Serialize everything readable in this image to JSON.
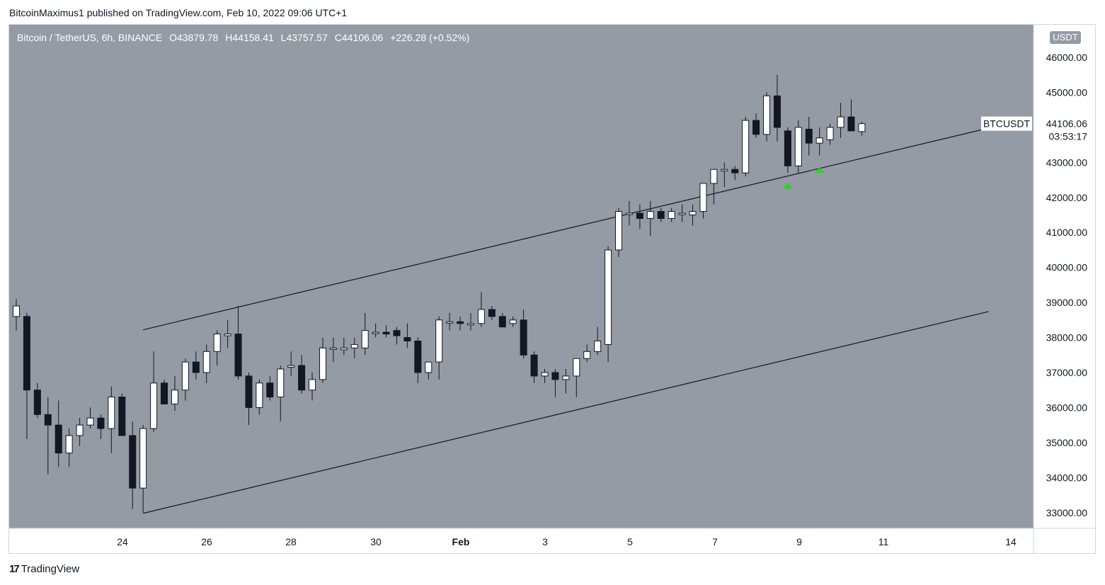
{
  "header": {
    "publisher_text": "BitcoinMaximus1 published on TradingView.com, Feb 10, 2022 09:06 UTC+1"
  },
  "legend": {
    "symbol_text": "Bitcoin / TetherUS, 6h, BINANCE",
    "open_label": "O",
    "open_value": "43879.78",
    "high_label": "H",
    "high_value": "44158.41",
    "low_label": "L",
    "low_value": "43757.57",
    "close_label": "C",
    "close_value": "44106.06",
    "change_text": "+226.28 (+0.52%)"
  },
  "currency_badge": "USDT",
  "price_tag": {
    "symbol": "BTCUSDT",
    "price": "44106.06",
    "countdown": "03:53:17"
  },
  "footer": {
    "brand": "TradingView",
    "logo_mark": "17"
  },
  "colors": {
    "background": "#949ba5",
    "bull_candle": "#ffffff",
    "bear_candle": "#131722",
    "wick": "#131722",
    "trendline": "#131722",
    "marker": "#2ed12e",
    "axis_text": "#131722"
  },
  "chart_data": {
    "type": "candlestick",
    "symbol": "BTCUSDT",
    "interval": "6h",
    "x_axis_ticks": [
      "24",
      "26",
      "28",
      "30",
      "Feb",
      "3",
      "5",
      "7",
      "9",
      "11",
      "14"
    ],
    "y_axis_ticks": [
      33000,
      34000,
      35000,
      36000,
      37000,
      38000,
      39000,
      40000,
      41000,
      42000,
      43000,
      44000,
      45000,
      46000
    ],
    "y_axis_tick_labels": [
      "33000.00",
      "34000.00",
      "35000.00",
      "36000.00",
      "37000.00",
      "38000.00",
      "39000.00",
      "40000.00",
      "41000.00",
      "42000.00",
      "43000.00",
      "44000.00",
      "45000.00",
      "46000.00"
    ],
    "ylim": [
      32550,
      46930
    ],
    "grid": false,
    "candles": [
      {
        "o": 38600,
        "h": 39100,
        "l": 38200,
        "c": 38900
      },
      {
        "o": 38600,
        "h": 38700,
        "l": 35100,
        "c": 36500
      },
      {
        "o": 36500,
        "h": 36700,
        "l": 35700,
        "c": 35800
      },
      {
        "o": 35800,
        "h": 36300,
        "l": 34100,
        "c": 35500
      },
      {
        "o": 35500,
        "h": 36200,
        "l": 34300,
        "c": 34700
      },
      {
        "o": 34700,
        "h": 35400,
        "l": 34300,
        "c": 35200
      },
      {
        "o": 35200,
        "h": 35700,
        "l": 34900,
        "c": 35500
      },
      {
        "o": 35500,
        "h": 36000,
        "l": 35400,
        "c": 35700
      },
      {
        "o": 35700,
        "h": 35800,
        "l": 35100,
        "c": 35400
      },
      {
        "o": 35400,
        "h": 36600,
        "l": 34700,
        "c": 36300
      },
      {
        "o": 36300,
        "h": 36400,
        "l": 35200,
        "c": 35200
      },
      {
        "o": 35200,
        "h": 35600,
        "l": 33100,
        "c": 33700
      },
      {
        "o": 33700,
        "h": 35500,
        "l": 33000,
        "c": 35400
      },
      {
        "o": 35400,
        "h": 37600,
        "l": 35300,
        "c": 36700
      },
      {
        "o": 36700,
        "h": 36800,
        "l": 36100,
        "c": 36100
      },
      {
        "o": 36100,
        "h": 36900,
        "l": 35900,
        "c": 36500
      },
      {
        "o": 36500,
        "h": 37400,
        "l": 36200,
        "c": 37300
      },
      {
        "o": 37300,
        "h": 37600,
        "l": 36800,
        "c": 37000
      },
      {
        "o": 37000,
        "h": 37800,
        "l": 36700,
        "c": 37600
      },
      {
        "o": 37600,
        "h": 38200,
        "l": 37200,
        "c": 38100
      },
      {
        "o": 38050,
        "h": 38500,
        "l": 37700,
        "c": 38100
      },
      {
        "o": 38100,
        "h": 38900,
        "l": 36800,
        "c": 36900
      },
      {
        "o": 36900,
        "h": 37000,
        "l": 35500,
        "c": 36000
      },
      {
        "o": 36000,
        "h": 36800,
        "l": 35800,
        "c": 36700
      },
      {
        "o": 36700,
        "h": 36900,
        "l": 36200,
        "c": 36300
      },
      {
        "o": 36300,
        "h": 37200,
        "l": 35600,
        "c": 37100
      },
      {
        "o": 37150,
        "h": 37600,
        "l": 36900,
        "c": 37200
      },
      {
        "o": 37200,
        "h": 37500,
        "l": 36400,
        "c": 36500
      },
      {
        "o": 36500,
        "h": 37000,
        "l": 36200,
        "c": 36800
      },
      {
        "o": 36800,
        "h": 38000,
        "l": 36700,
        "c": 37700
      },
      {
        "o": 37700,
        "h": 38000,
        "l": 37300,
        "c": 37700
      },
      {
        "o": 37650,
        "h": 38000,
        "l": 37500,
        "c": 37700
      },
      {
        "o": 37700,
        "h": 38000,
        "l": 37400,
        "c": 37800
      },
      {
        "o": 37700,
        "h": 38700,
        "l": 37500,
        "c": 38200
      },
      {
        "o": 38150,
        "h": 38400,
        "l": 38000,
        "c": 38150
      },
      {
        "o": 38150,
        "h": 38350,
        "l": 38000,
        "c": 38100
      },
      {
        "o": 38200,
        "h": 38300,
        "l": 37800,
        "c": 38050
      },
      {
        "o": 38000,
        "h": 38400,
        "l": 37700,
        "c": 37900
      },
      {
        "o": 37900,
        "h": 38000,
        "l": 36700,
        "c": 37000
      },
      {
        "o": 37000,
        "h": 37300,
        "l": 36800,
        "c": 37300
      },
      {
        "o": 37300,
        "h": 38600,
        "l": 36800,
        "c": 38500
      },
      {
        "o": 38450,
        "h": 38700,
        "l": 38200,
        "c": 38450
      },
      {
        "o": 38450,
        "h": 38600,
        "l": 38200,
        "c": 38400
      },
      {
        "o": 38400,
        "h": 38700,
        "l": 38200,
        "c": 38400
      },
      {
        "o": 38400,
        "h": 39300,
        "l": 38300,
        "c": 38800
      },
      {
        "o": 38800,
        "h": 38900,
        "l": 38500,
        "c": 38600
      },
      {
        "o": 38600,
        "h": 38700,
        "l": 38300,
        "c": 38300
      },
      {
        "o": 38400,
        "h": 38600,
        "l": 38300,
        "c": 38500
      },
      {
        "o": 38500,
        "h": 38800,
        "l": 37400,
        "c": 37500
      },
      {
        "o": 37500,
        "h": 37600,
        "l": 36700,
        "c": 36900
      },
      {
        "o": 36900,
        "h": 37100,
        "l": 36700,
        "c": 37000
      },
      {
        "o": 37000,
        "h": 37100,
        "l": 36300,
        "c": 36800
      },
      {
        "o": 36800,
        "h": 37100,
        "l": 36400,
        "c": 36900
      },
      {
        "o": 36900,
        "h": 37400,
        "l": 36300,
        "c": 37400
      },
      {
        "o": 37400,
        "h": 37800,
        "l": 37300,
        "c": 37600
      },
      {
        "o": 37600,
        "h": 38300,
        "l": 37500,
        "c": 37900
      },
      {
        "o": 37800,
        "h": 40600,
        "l": 37300,
        "c": 40500
      },
      {
        "o": 40500,
        "h": 41700,
        "l": 40300,
        "c": 41600
      },
      {
        "o": 41550,
        "h": 41900,
        "l": 41200,
        "c": 41550
      },
      {
        "o": 41550,
        "h": 41800,
        "l": 41100,
        "c": 41400
      },
      {
        "o": 41400,
        "h": 41900,
        "l": 40900,
        "c": 41600
      },
      {
        "o": 41600,
        "h": 41700,
        "l": 41300,
        "c": 41400
      },
      {
        "o": 41400,
        "h": 41700,
        "l": 41300,
        "c": 41600
      },
      {
        "o": 41550,
        "h": 41800,
        "l": 41300,
        "c": 41550
      },
      {
        "o": 41500,
        "h": 41800,
        "l": 41200,
        "c": 41600
      },
      {
        "o": 41600,
        "h": 42300,
        "l": 41400,
        "c": 42400
      },
      {
        "o": 42400,
        "h": 42700,
        "l": 41800,
        "c": 42800
      },
      {
        "o": 42800,
        "h": 43000,
        "l": 42300,
        "c": 42800
      },
      {
        "o": 42800,
        "h": 42900,
        "l": 42500,
        "c": 42700
      },
      {
        "o": 42700,
        "h": 44300,
        "l": 42600,
        "c": 44200
      },
      {
        "o": 44200,
        "h": 44400,
        "l": 43700,
        "c": 43800
      },
      {
        "o": 43800,
        "h": 45000,
        "l": 43600,
        "c": 44900
      },
      {
        "o": 44900,
        "h": 45500,
        "l": 43600,
        "c": 44000
      },
      {
        "o": 43900,
        "h": 44000,
        "l": 42700,
        "c": 42900
      },
      {
        "o": 42900,
        "h": 44200,
        "l": 42700,
        "c": 44000
      },
      {
        "o": 43950,
        "h": 44300,
        "l": 43200,
        "c": 43550
      },
      {
        "o": 43550,
        "h": 44000,
        "l": 43200,
        "c": 43700
      },
      {
        "o": 43650,
        "h": 44100,
        "l": 43500,
        "c": 44000
      },
      {
        "o": 44000,
        "h": 44700,
        "l": 43700,
        "c": 44300
      },
      {
        "o": 44300,
        "h": 44800,
        "l": 43900,
        "c": 43900
      },
      {
        "o": 43880,
        "h": 44160,
        "l": 43760,
        "c": 44106
      }
    ],
    "trendlines": [
      {
        "name": "channel-upper",
        "from": {
          "i": 12,
          "y": 38220
        },
        "to": {
          "i": 92,
          "y": 43980
        }
      },
      {
        "name": "channel-lower",
        "from": {
          "i": 12,
          "y": 32980
        },
        "to": {
          "i": 92,
          "y": 38740
        }
      }
    ],
    "markers": [
      {
        "type": "triangle-up",
        "candle_index": 73,
        "y": 42330
      },
      {
        "type": "triangle-up",
        "candle_index": 76,
        "y": 42780
      }
    ],
    "current_price": 44106.06
  }
}
